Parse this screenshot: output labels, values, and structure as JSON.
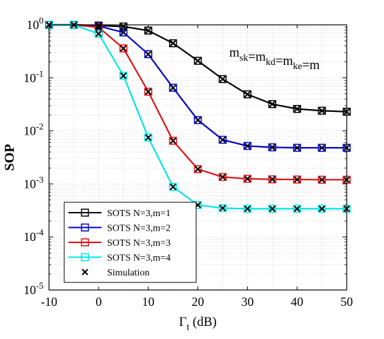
{
  "chart_data": {
    "type": "line",
    "xlabel_main": "Γ",
    "xlabel_sub": "t",
    "xlabel_unit": " (dB)",
    "ylabel": "SOP",
    "y_scale": "log",
    "xlim": [
      -10,
      50
    ],
    "ylim": [
      1e-05,
      1
    ],
    "x_ticks": [
      -10,
      0,
      10,
      20,
      30,
      40,
      50
    ],
    "x_tick_labels": [
      "-10",
      "0",
      "10",
      "20",
      "30",
      "40",
      "50"
    ],
    "y_ticks": [
      {
        "base": "10",
        "exp": "-5",
        "value": 1e-05
      },
      {
        "base": "10",
        "exp": "-4",
        "value": 0.0001
      },
      {
        "base": "10",
        "exp": "-3",
        "value": 0.001
      },
      {
        "base": "10",
        "exp": "-2",
        "value": 0.01
      },
      {
        "base": "10",
        "exp": "-1",
        "value": 0.1
      },
      {
        "base": "10",
        "exp": "0",
        "value": 1
      }
    ],
    "grid": true,
    "legend_position": "bottom-left",
    "annotation": {
      "parts": [
        {
          "t": "m",
          "sub": "sk"
        },
        {
          "t": "=m",
          "sub": "kd"
        },
        {
          "t": "=m",
          "sub": "ke"
        },
        {
          "t": "=m",
          "sub": ""
        }
      ]
    },
    "x": [
      -10,
      -5,
      0,
      5,
      10,
      15,
      20,
      25,
      30,
      35,
      40,
      45,
      50
    ],
    "series": [
      {
        "name": "SOTS N=3,m=1",
        "color": "#000000",
        "values": [
          1.0,
          1.0,
          0.97,
          0.93,
          0.78,
          0.45,
          0.21,
          0.095,
          0.049,
          0.032,
          0.026,
          0.024,
          0.023
        ]
      },
      {
        "name": "SOTS N=3,m=2",
        "color": "#0000cc",
        "values": [
          1.0,
          1.0,
          0.95,
          0.72,
          0.28,
          0.065,
          0.016,
          0.0068,
          0.0052,
          0.0049,
          0.0048,
          0.0048,
          0.0048
        ]
      },
      {
        "name": "SOTS N=3,m=3",
        "color": "#e01010",
        "values": [
          1.0,
          1.0,
          0.9,
          0.36,
          0.055,
          0.0065,
          0.0019,
          0.00135,
          0.00125,
          0.00122,
          0.00121,
          0.0012,
          0.0012
        ]
      },
      {
        "name": "SOTS N=3,m=4",
        "color": "#00e5e5",
        "values": [
          1.0,
          1.0,
          0.68,
          0.11,
          0.0075,
          0.00088,
          0.0004,
          0.00035,
          0.00034,
          0.00034,
          0.00034,
          0.00034,
          0.00034
        ]
      }
    ],
    "simulation": {
      "name": "Simulation",
      "values": [
        [
          1.0,
          1.0,
          0.97,
          0.93,
          0.78,
          0.45,
          0.21,
          0.095,
          0.049,
          0.032,
          0.026,
          0.024,
          0.023
        ],
        [
          1.0,
          1.0,
          0.95,
          0.72,
          0.28,
          0.065,
          0.016,
          0.0068,
          0.0052,
          0.0049,
          0.0048,
          0.0048,
          0.0048
        ],
        [
          1.0,
          1.0,
          0.9,
          0.36,
          0.055,
          0.0065,
          0.0019,
          0.00135,
          0.00125,
          0.00122,
          0.00121,
          0.0012,
          0.0012
        ],
        [
          1.0,
          1.0,
          0.68,
          0.11,
          0.0075,
          0.00088,
          0.0004,
          0.00035,
          0.00034,
          0.00034,
          0.00034,
          0.00034,
          0.00034
        ]
      ]
    }
  }
}
